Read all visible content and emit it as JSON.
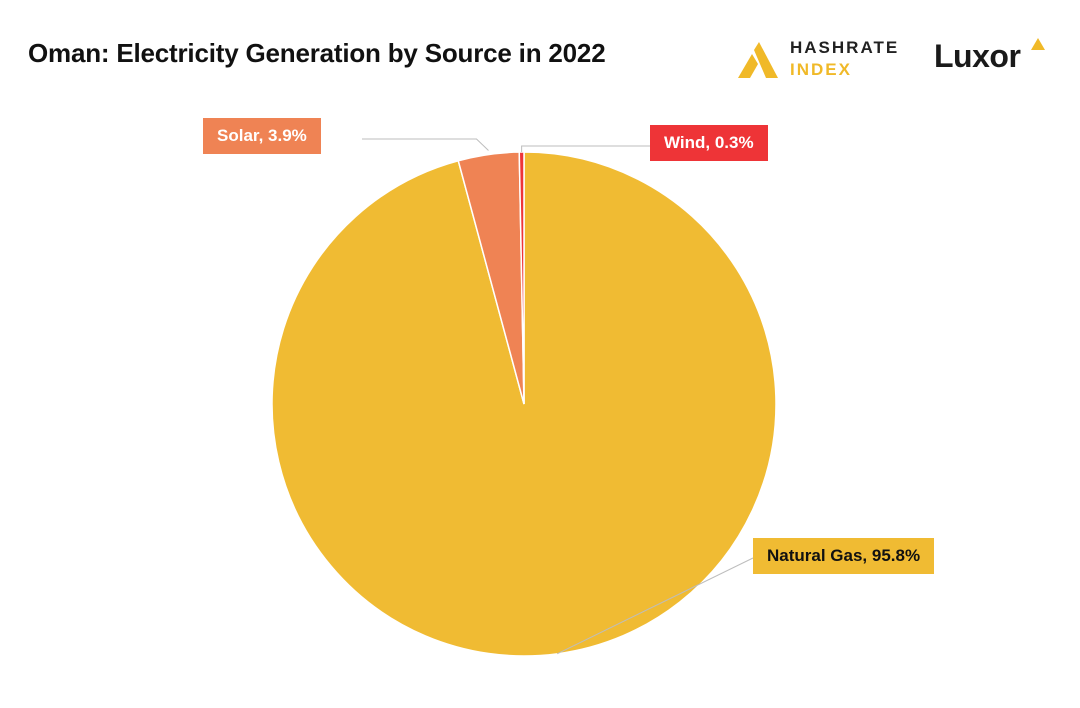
{
  "header": {
    "title": "Oman: Electricity Generation by Source in 2022"
  },
  "branding": {
    "hashrate_line1": "HASHRATE",
    "hashrate_line2": "INDEX",
    "luxor": "Luxor",
    "hashrate_color": "#f0b928",
    "luxor_color": "#1a1a1a"
  },
  "chart_data": {
    "type": "pie",
    "title": "Oman: Electricity Generation by Source in 2022",
    "start_angle_deg": 0,
    "direction": "clockwise",
    "legend": "none",
    "slices": [
      {
        "name": "Natural Gas",
        "value": 95.8,
        "label": "Natural Gas, 95.8%",
        "color": "#f0bb33",
        "label_bg": "#f0bb33",
        "label_color": "#111111"
      },
      {
        "name": "Solar",
        "value": 3.9,
        "label": "Solar, 3.9%",
        "color": "#ef8354",
        "label_bg": "#ef8354",
        "label_color": "#ffffff"
      },
      {
        "name": "Wind",
        "value": 0.3,
        "label": "Wind, 0.3%",
        "color": "#ee3437",
        "label_bg": "#ee3437",
        "label_color": "#ffffff"
      }
    ]
  }
}
